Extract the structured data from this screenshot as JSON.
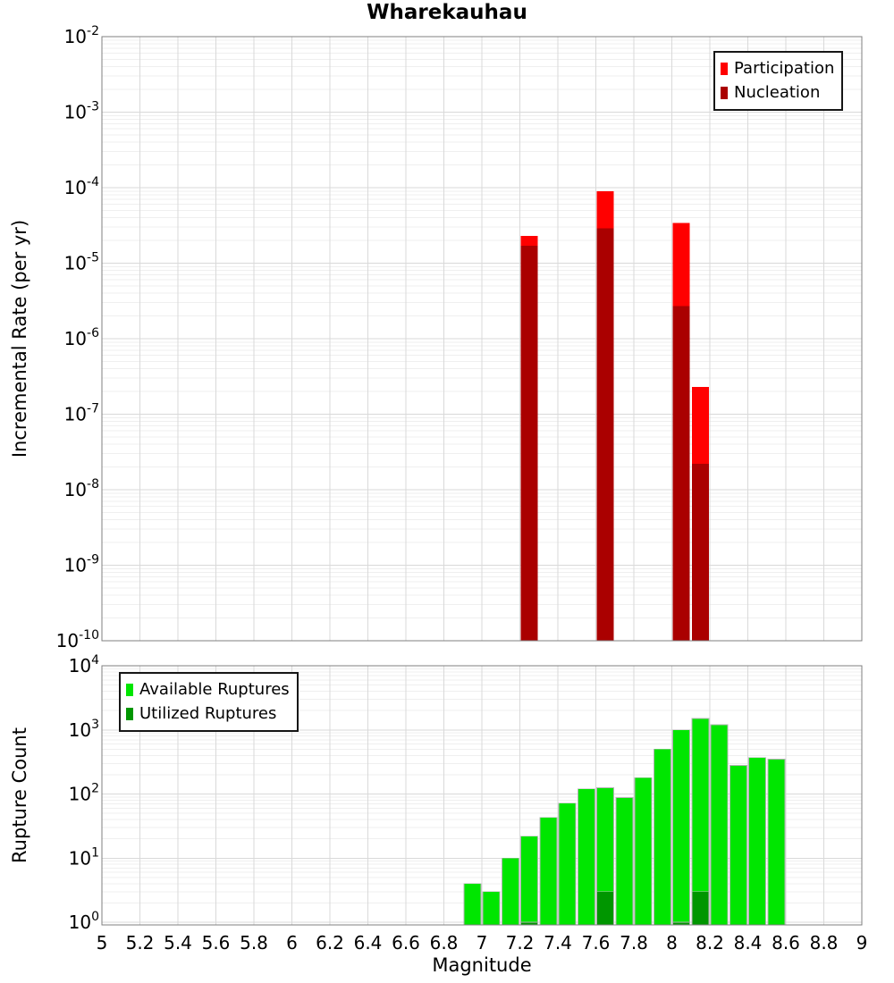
{
  "title": "Wharekauhau",
  "axes": {
    "x": {
      "label": "Magnitude",
      "min": 5,
      "max": 9,
      "tick_values": [
        5,
        5.2,
        5.4,
        5.6,
        5.8,
        6,
        6.2,
        6.4,
        6.6,
        6.8,
        7,
        7.2,
        7.4,
        7.6,
        7.8,
        8,
        8.2,
        8.4,
        8.6,
        8.8,
        9
      ],
      "tick_labels": [
        "5",
        "5.2",
        "5.4",
        "5.6",
        "5.8",
        "6",
        "6.2",
        "6.4",
        "6.6",
        "6.8",
        "7",
        "7.2",
        "7.4",
        "7.6",
        "7.8",
        "8",
        "8.2",
        "8.4",
        "8.6",
        "8.8",
        "9"
      ]
    },
    "top_y": {
      "label": "Incremental Rate (per yr)",
      "scale": "log",
      "exp_max": -2,
      "exp_min": -10,
      "tick_exponents": [
        -2,
        -3,
        -4,
        -5,
        -6,
        -7,
        -8,
        -9,
        -10
      ]
    },
    "bottom_y": {
      "label": "Rupture Count",
      "scale": "log",
      "exp_max": 4,
      "exp_min": 0,
      "tick_exponents": [
        4,
        3,
        2,
        1,
        0
      ]
    }
  },
  "legends": {
    "top": [
      {
        "label": "Participation",
        "color": "#ff0000"
      },
      {
        "label": "Nucleation",
        "color": "#aa0000"
      }
    ],
    "bottom": [
      {
        "label": "Available Ruptures",
        "color": "#00e600"
      },
      {
        "label": "Utilized Ruptures",
        "color": "#009600"
      }
    ]
  },
  "chart_data": [
    {
      "type": "bar",
      "panel": "top",
      "title": "Wharekauhau",
      "xlabel": "Magnitude",
      "ylabel": "Incremental Rate (per yr)",
      "yscale": "log",
      "xlim": [
        5,
        9
      ],
      "ylim": [
        1e-10,
        0.01
      ],
      "grid": true,
      "legend_position": "upper right",
      "bin_width": 0.1,
      "x": [
        7.25,
        7.65,
        8.05,
        8.15
      ],
      "series": [
        {
          "name": "Participation",
          "color": "#ff0000",
          "values": [
            2.3e-05,
            9e-05,
            3.4e-05,
            2.3e-07
          ]
        },
        {
          "name": "Nucleation",
          "color": "#aa0000",
          "values": [
            1.7e-05,
            2.9e-05,
            2.7e-06,
            2.2e-08
          ]
        }
      ]
    },
    {
      "type": "bar",
      "panel": "bottom",
      "xlabel": "Magnitude",
      "ylabel": "Rupture Count",
      "yscale": "log",
      "xlim": [
        5,
        9
      ],
      "ylim": [
        1,
        10000
      ],
      "grid": true,
      "legend_position": "upper left",
      "bin_width": 0.1,
      "x": [
        6.95,
        7.05,
        7.15,
        7.25,
        7.35,
        7.45,
        7.55,
        7.65,
        7.75,
        7.85,
        7.95,
        8.05,
        8.15,
        8.25,
        8.35,
        8.45,
        8.55
      ],
      "series": [
        {
          "name": "Available Ruptures",
          "color": "#00e600",
          "values": [
            4,
            3,
            10,
            22,
            43,
            72,
            120,
            125,
            88,
            180,
            500,
            1000,
            1500,
            1200,
            280,
            370,
            350
          ]
        },
        {
          "name": "Utilized Ruptures",
          "color": "#009600",
          "values": [
            0,
            0,
            0,
            1,
            0,
            0,
            0,
            3,
            0,
            0,
            0,
            1,
            3,
            0,
            0,
            0,
            0
          ]
        }
      ]
    }
  ]
}
